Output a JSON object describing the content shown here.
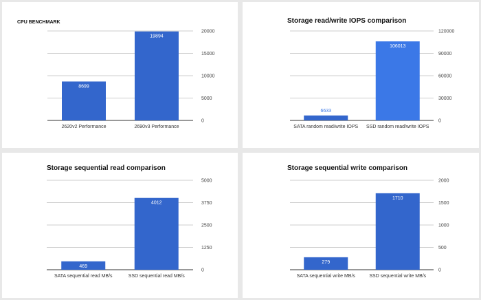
{
  "chart_data": [
    {
      "type": "bar",
      "title": "CPU BENCHMARK",
      "categories": [
        "2620v2 Performance",
        "2690v3 Performance"
      ],
      "values": [
        8699,
        19894
      ],
      "ylim": [
        0,
        20000
      ],
      "yticks": [
        0,
        5000,
        10000,
        15000,
        20000
      ],
      "value_labels": [
        "8699",
        "19894"
      ],
      "tick_labels": [
        "0",
        "5000",
        "10000",
        "15000",
        "20000"
      ],
      "xlabel": "",
      "ylabel": "",
      "axis_side": "right",
      "grid": true,
      "bar_colors": [
        "#3366cc",
        "#3366cc"
      ],
      "label_colors": [
        "#ffffff",
        "#ffffff"
      ],
      "label_inside": [
        true,
        true
      ]
    },
    {
      "type": "bar",
      "title": "Storage read/write IOPS comparison",
      "categories": [
        "SATA random read/write IOPS",
        "SSD random read/write IOPS"
      ],
      "values": [
        6633,
        106013
      ],
      "ylim": [
        0,
        120000
      ],
      "yticks": [
        0,
        30000,
        60000,
        90000,
        120000
      ],
      "value_labels": [
        "6633",
        "106013"
      ],
      "tick_labels": [
        "0",
        "30000",
        "60000",
        "90000",
        "120000"
      ],
      "xlabel": "",
      "ylabel": "",
      "axis_side": "right",
      "grid": true,
      "bar_colors": [
        "#3366cc",
        "#3b78e7"
      ],
      "label_colors": [
        "#3b78e7",
        "#ffffff"
      ],
      "label_inside": [
        false,
        true
      ]
    },
    {
      "type": "bar",
      "title": "Storage sequential read comparison",
      "categories": [
        "SATA sequential read MB/s",
        "SSD sequential read MB/s"
      ],
      "values": [
        469,
        4012
      ],
      "ylim": [
        0,
        5000
      ],
      "yticks": [
        0,
        1250,
        2500,
        3750,
        5000
      ],
      "value_labels": [
        "469",
        "4012"
      ],
      "tick_labels": [
        "0",
        "1250",
        "2500",
        "3750",
        "5000"
      ],
      "xlabel": "",
      "ylabel": "",
      "axis_side": "right",
      "grid": true,
      "bar_colors": [
        "#3366cc",
        "#3366cc"
      ],
      "label_colors": [
        "#ffffff",
        "#ffffff"
      ],
      "label_inside": [
        true,
        true
      ]
    },
    {
      "type": "bar",
      "title": "Storage sequential write comparison",
      "categories": [
        "SATA sequential write MB/s",
        "SSD sequential write MB/s"
      ],
      "values": [
        279,
        1710
      ],
      "ylim": [
        0,
        2000
      ],
      "yticks": [
        0,
        500,
        1000,
        1500,
        2000
      ],
      "value_labels": [
        "279",
        "1710"
      ],
      "tick_labels": [
        "0",
        "500",
        "1000",
        "1500",
        "2000"
      ],
      "xlabel": "",
      "ylabel": "",
      "axis_side": "right",
      "grid": true,
      "bar_colors": [
        "#3366cc",
        "#3366cc"
      ],
      "label_colors": [
        "#ffffff",
        "#ffffff"
      ],
      "label_inside": [
        true,
        true
      ]
    }
  ]
}
